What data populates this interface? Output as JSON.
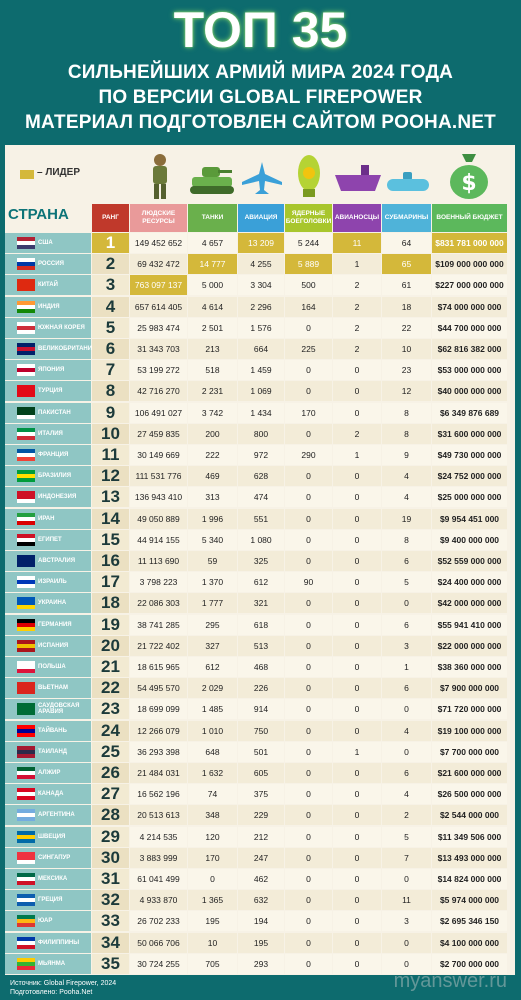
{
  "header": {
    "title": "ТОП 35",
    "lines": [
      "СИЛЬНЕЙШИХ АРМИЙ МИРА 2024 ГОДА",
      "ПО ВЕРСИИ GLOBAL FIREPOWER",
      "МАТЕРИАЛ ПОДГОТОВЛЕН САЙТОМ POOHA.NET"
    ]
  },
  "legend": "– ЛИДЕР",
  "table": {
    "country_header": "СТРАНА",
    "columns": [
      "РАНГ",
      "ЛЮДСКИЕ РЕСУРСЫ",
      "ТАНКИ",
      "АВИАЦИЯ",
      "ЯДЕРНЫЕ БОЕГОЛОВКИ",
      "АВИАНОСЦЫ",
      "СУБМАРИНЫ",
      "ВОЕННЫЙ БЮДЖЕТ"
    ],
    "rows": [
      [
        "США",
        "1",
        "149 452 652",
        "4 657",
        "13 209",
        "5 244",
        "11",
        "64",
        "$831 781 000 000"
      ],
      [
        "РОССИЯ",
        "2",
        "69 432 472",
        "14 777",
        "4 255",
        "5 889",
        "1",
        "65",
        "$109 000 000 000"
      ],
      [
        "КИТАЙ",
        "3",
        "763 097 137",
        "5 000",
        "3 304",
        "500",
        "2",
        "61",
        "$227 000 000 000"
      ],
      [
        "ИНДИЯ",
        "4",
        "657 614 405",
        "4 614",
        "2 296",
        "164",
        "2",
        "18",
        "$74 000 000 000"
      ],
      [
        "ЮЖНАЯ КОРЕЯ",
        "5",
        "25 983 474",
        "2 501",
        "1 576",
        "0",
        "2",
        "22",
        "$44 700 000 000"
      ],
      [
        "ВЕЛИКОБРИТАНИЯ",
        "6",
        "31 343 703",
        "213",
        "664",
        "225",
        "2",
        "10",
        "$62 816 382 000"
      ],
      [
        "ЯПОНИЯ",
        "7",
        "53 199 272",
        "518",
        "1 459",
        "0",
        "0",
        "23",
        "$53 000 000 000"
      ],
      [
        "ТУРЦИЯ",
        "8",
        "42 716 270",
        "2 231",
        "1 069",
        "0",
        "0",
        "12",
        "$40 000 000 000"
      ],
      [
        "ПАКИСТАН",
        "9",
        "106 491 027",
        "3 742",
        "1 434",
        "170",
        "0",
        "8",
        "$6 349 876 689"
      ],
      [
        "ИТАЛИЯ",
        "10",
        "27 459 835",
        "200",
        "800",
        "0",
        "2",
        "8",
        "$31 600 000 000"
      ],
      [
        "ФРАНЦИЯ",
        "11",
        "30 149 669",
        "222",
        "972",
        "290",
        "1",
        "9",
        "$49 730 000 000"
      ],
      [
        "БРАЗИЛИЯ",
        "12",
        "111 531 776",
        "469",
        "628",
        "0",
        "0",
        "4",
        "$24 752 000 000"
      ],
      [
        "ИНДОНЕЗИЯ",
        "13",
        "136 943 410",
        "313",
        "474",
        "0",
        "0",
        "4",
        "$25 000 000 000"
      ],
      [
        "ИРАН",
        "14",
        "49 050 889",
        "1 996",
        "551",
        "0",
        "0",
        "19",
        "$9 954 451 000"
      ],
      [
        "ЕГИПЕТ",
        "15",
        "44 914 155",
        "5 340",
        "1 080",
        "0",
        "0",
        "8",
        "$9 400 000 000"
      ],
      [
        "АВСТРАЛИЯ",
        "16",
        "11 113 690",
        "59",
        "325",
        "0",
        "0",
        "6",
        "$52 559 000 000"
      ],
      [
        "ИЗРАИЛЬ",
        "17",
        "3 798 223",
        "1 370",
        "612",
        "90",
        "0",
        "5",
        "$24 400 000 000"
      ],
      [
        "УКРАИНА",
        "18",
        "22 086 303",
        "1 777",
        "321",
        "0",
        "0",
        "0",
        "$42 000 000 000"
      ],
      [
        "ГЕРМАНИЯ",
        "19",
        "38 741 285",
        "295",
        "618",
        "0",
        "0",
        "6",
        "$55 941 410 000"
      ],
      [
        "ИСПАНИЯ",
        "20",
        "21 722 402",
        "327",
        "513",
        "0",
        "0",
        "3",
        "$22 000 000 000"
      ],
      [
        "ПОЛЬША",
        "21",
        "18 615 965",
        "612",
        "468",
        "0",
        "0",
        "1",
        "$38 360 000 000"
      ],
      [
        "ВЬЕТНАМ",
        "22",
        "54 495 570",
        "2 029",
        "226",
        "0",
        "0",
        "6",
        "$7 900 000 000"
      ],
      [
        "САУДОВСКАЯ АРАВИЯ",
        "23",
        "18 699 099",
        "1 485",
        "914",
        "0",
        "0",
        "0",
        "$71 720 000 000"
      ],
      [
        "ТАЙВАНЬ",
        "24",
        "12 266 079",
        "1 010",
        "750",
        "0",
        "0",
        "4",
        "$19 100 000 000"
      ],
      [
        "ТАИЛАНД",
        "25",
        "36 293 398",
        "648",
        "501",
        "0",
        "1",
        "0",
        "$7 700 000 000"
      ],
      [
        "АЛЖИР",
        "26",
        "21 484 031",
        "1 632",
        "605",
        "0",
        "0",
        "6",
        "$21 600 000 000"
      ],
      [
        "КАНАДА",
        "27",
        "16 562 196",
        "74",
        "375",
        "0",
        "0",
        "4",
        "$26 500 000 000"
      ],
      [
        "АРГЕНТИНА",
        "28",
        "20 513 613",
        "348",
        "229",
        "0",
        "0",
        "2",
        "$2 544 000 000"
      ],
      [
        "ШВЕЦИЯ",
        "29",
        "4 214 535",
        "120",
        "212",
        "0",
        "0",
        "5",
        "$11 349 506 000"
      ],
      [
        "СИНГАПУР",
        "30",
        "3 883 999",
        "170",
        "247",
        "0",
        "0",
        "7",
        "$13 493 000 000"
      ],
      [
        "МЕКСИКА",
        "31",
        "61 041 499",
        "0",
        "462",
        "0",
        "0",
        "0",
        "$14 824 000 000"
      ],
      [
        "ГРЕЦИЯ",
        "32",
        "4 933 870",
        "1 365",
        "632",
        "0",
        "0",
        "11",
        "$5 974 000 000"
      ],
      [
        "ЮАР",
        "33",
        "26 702 233",
        "195",
        "194",
        "0",
        "0",
        "3",
        "$2 695 346 150"
      ],
      [
        "ФИЛИППИНЫ",
        "34",
        "50 066 706",
        "10",
        "195",
        "0",
        "0",
        "0",
        "$4 100 000 000"
      ],
      [
        "МЬЯНМА",
        "35",
        "30 724 255",
        "705",
        "293",
        "0",
        "0",
        "0",
        "$2 700 000 000"
      ]
    ]
  },
  "footer": {
    "source": "Источник: Global Firepower, 2024",
    "prepared": "Подготовлено: Pooha.Net"
  },
  "watermark": "myanswer.ru"
}
